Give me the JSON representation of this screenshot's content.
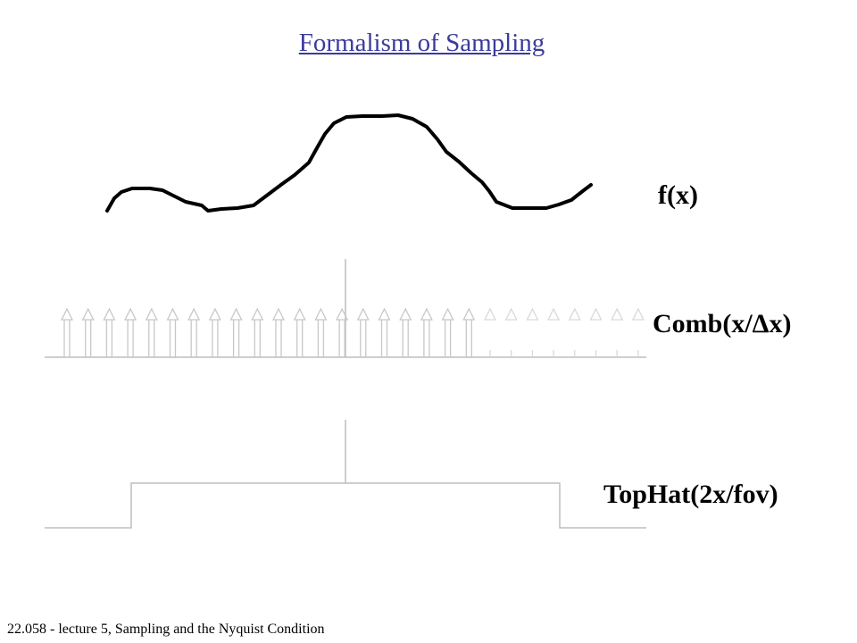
{
  "slide": {
    "title": "Formalism of Sampling",
    "footer": "22.058 - lecture 5, Sampling and the Nyquist Condition"
  },
  "diagram": {
    "function_label": "f(x)",
    "comb_label": "Comb(x/Δx)",
    "tophat_label": "TopHat(2x/fov)",
    "comb": {
      "solid_teeth": 20,
      "faded_teeth": 8
    },
    "colors": {
      "curve": "#000000",
      "axis": "#bdbdbd",
      "comb": "#c8c8c8",
      "comb_faded": "#d9d9d9",
      "title": "#3b3b9e"
    }
  }
}
